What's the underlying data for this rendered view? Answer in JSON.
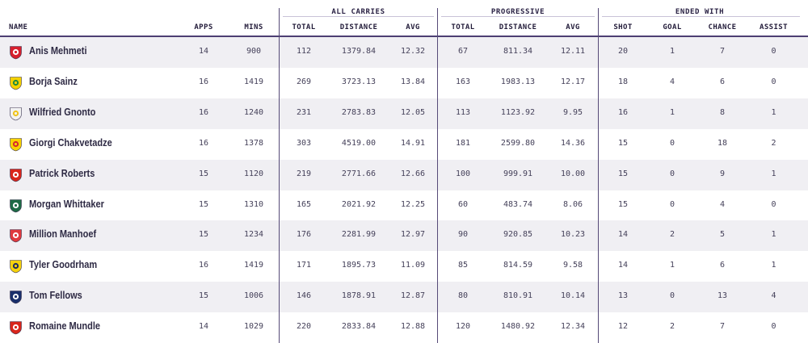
{
  "groups": {
    "all_carries": "ALL CARRIES",
    "progressive": "PROGRESSIVE",
    "ended_with": "ENDED WITH"
  },
  "headers": {
    "name": "NAME",
    "apps": "APPS",
    "mins": "MINS",
    "carries_total": "TOTAL",
    "carries_distance": "DISTANCE",
    "carries_avg": "AVG",
    "prog_total": "TOTAL",
    "prog_distance": "DISTANCE",
    "prog_avg": "AVG",
    "shot": "SHOT",
    "goal": "GOAL",
    "chance": "CHANCE",
    "assist": "ASSIST"
  },
  "rows": [
    {
      "name": "Anis Mehmeti",
      "crest": "bristol-city-crest-icon",
      "crest_colors": [
        "#d7202e",
        "#ffffff"
      ],
      "apps": "14",
      "mins": "900",
      "c_total": "112",
      "c_dist": "1379.84",
      "c_avg": "12.32",
      "p_total": "67",
      "p_dist": "811.34",
      "p_avg": "12.11",
      "shot": "20",
      "goal": "1",
      "chance": "7",
      "assist": "0"
    },
    {
      "name": "Borja Sainz",
      "crest": "norwich-city-crest-icon",
      "crest_colors": [
        "#f5d100",
        "#1e8a3c"
      ],
      "apps": "16",
      "mins": "1419",
      "c_total": "269",
      "c_dist": "3723.13",
      "c_avg": "13.84",
      "p_total": "163",
      "p_dist": "1983.13",
      "p_avg": "12.17",
      "shot": "18",
      "goal": "4",
      "chance": "6",
      "assist": "0"
    },
    {
      "name": "Wilfried Gnonto",
      "crest": "leeds-united-crest-icon",
      "crest_colors": [
        "#f2f2f2",
        "#f0c418"
      ],
      "apps": "16",
      "mins": "1240",
      "c_total": "231",
      "c_dist": "2783.83",
      "c_avg": "12.05",
      "p_total": "113",
      "p_dist": "1123.92",
      "p_avg": "9.95",
      "shot": "16",
      "goal": "1",
      "chance": "8",
      "assist": "1"
    },
    {
      "name": "Giorgi Chakvetadze",
      "crest": "watford-crest-icon",
      "crest_colors": [
        "#f9d200",
        "#d6262e"
      ],
      "apps": "16",
      "mins": "1378",
      "c_total": "303",
      "c_dist": "4519.00",
      "c_avg": "14.91",
      "p_total": "181",
      "p_dist": "2599.80",
      "p_avg": "14.36",
      "shot": "15",
      "goal": "0",
      "chance": "18",
      "assist": "2"
    },
    {
      "name": "Patrick Roberts",
      "crest": "sunderland-crest-icon",
      "crest_colors": [
        "#d9261c",
        "#ffffff"
      ],
      "apps": "15",
      "mins": "1120",
      "c_total": "219",
      "c_dist": "2771.66",
      "c_avg": "12.66",
      "p_total": "100",
      "p_dist": "999.91",
      "p_avg": "10.00",
      "shot": "15",
      "goal": "0",
      "chance": "9",
      "assist": "1"
    },
    {
      "name": "Morgan Whittaker",
      "crest": "plymouth-argyle-crest-icon",
      "crest_colors": [
        "#1e6b45",
        "#ffffff"
      ],
      "apps": "15",
      "mins": "1310",
      "c_total": "165",
      "c_dist": "2021.92",
      "c_avg": "12.25",
      "p_total": "60",
      "p_dist": "483.74",
      "p_avg": "8.06",
      "shot": "15",
      "goal": "0",
      "chance": "4",
      "assist": "0"
    },
    {
      "name": "Million Manhoef",
      "crest": "stoke-city-crest-icon",
      "crest_colors": [
        "#e03a3e",
        "#ffffff"
      ],
      "apps": "15",
      "mins": "1234",
      "c_total": "176",
      "c_dist": "2281.99",
      "c_avg": "12.97",
      "p_total": "90",
      "p_dist": "920.85",
      "p_avg": "10.23",
      "shot": "14",
      "goal": "2",
      "chance": "5",
      "assist": "1"
    },
    {
      "name": "Tyler Goodrham",
      "crest": "oxford-united-crest-icon",
      "crest_colors": [
        "#f5d20c",
        "#1d2a5e"
      ],
      "apps": "16",
      "mins": "1419",
      "c_total": "171",
      "c_dist": "1895.73",
      "c_avg": "11.09",
      "p_total": "85",
      "p_dist": "814.59",
      "p_avg": "9.58",
      "shot": "14",
      "goal": "1",
      "chance": "6",
      "assist": "1"
    },
    {
      "name": "Tom Fellows",
      "crest": "west-brom-crest-icon",
      "crest_colors": [
        "#1a2f6b",
        "#ffffff"
      ],
      "apps": "15",
      "mins": "1006",
      "c_total": "146",
      "c_dist": "1878.91",
      "c_avg": "12.87",
      "p_total": "80",
      "p_dist": "810.91",
      "p_avg": "10.14",
      "shot": "13",
      "goal": "0",
      "chance": "13",
      "assist": "4"
    },
    {
      "name": "Romaine Mundle",
      "crest": "sunderland-crest-icon",
      "crest_colors": [
        "#d9261c",
        "#ffffff"
      ],
      "apps": "14",
      "mins": "1029",
      "c_total": "220",
      "c_dist": "2833.84",
      "c_avg": "12.88",
      "p_total": "120",
      "p_dist": "1480.92",
      "p_avg": "12.34",
      "shot": "12",
      "goal": "2",
      "chance": "7",
      "assist": "0"
    }
  ]
}
